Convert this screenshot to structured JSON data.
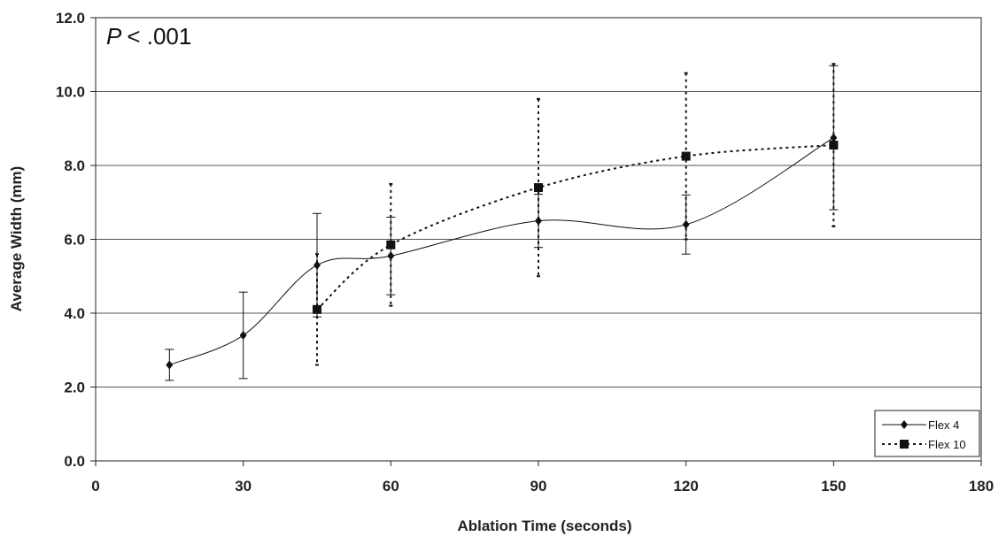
{
  "chart_data": {
    "type": "line",
    "xlabel": "Ablation Time (seconds)",
    "ylabel": "Average Width (mm)",
    "xlim": [
      0,
      180
    ],
    "ylim": [
      0,
      12
    ],
    "xticks": [
      "0",
      "30",
      "60",
      "90",
      "120",
      "150",
      "180"
    ],
    "xtick_values": [
      0,
      30,
      60,
      90,
      120,
      150,
      180
    ],
    "yticks": [
      "0.0",
      "2.0",
      "4.0",
      "6.0",
      "8.0",
      "10.0",
      "12.0"
    ],
    "ytick_values": [
      0,
      2,
      4,
      6,
      8,
      10,
      12
    ],
    "grid": "horizontal",
    "legend_position": "bottom-right",
    "annotation": {
      "italic": "P",
      "rest": "< .001"
    },
    "series": [
      {
        "name": "Flex 4",
        "style": "solid",
        "marker": "diamond",
        "color": "#111111",
        "x": [
          15,
          30,
          45,
          60,
          90,
          120,
          150
        ],
        "y": [
          2.6,
          3.4,
          5.3,
          5.55,
          6.5,
          6.4,
          8.75
        ],
        "err": [
          0.42,
          1.17,
          1.4,
          1.05,
          0.72,
          0.8,
          1.95
        ]
      },
      {
        "name": "Flex 10",
        "style": "dashed",
        "marker": "square",
        "color": "#111111",
        "x": [
          45,
          60,
          90,
          120,
          150
        ],
        "y": [
          4.1,
          5.85,
          7.4,
          8.25,
          8.55
        ],
        "err": [
          1.5,
          1.65,
          2.4,
          2.25,
          2.2
        ]
      }
    ]
  }
}
